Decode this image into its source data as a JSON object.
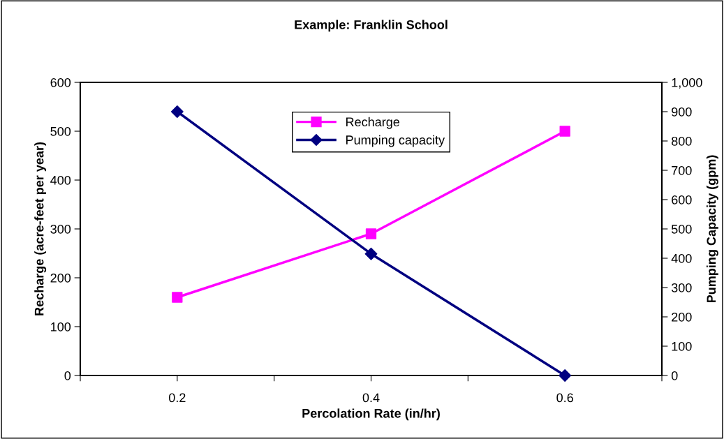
{
  "chart_data": {
    "type": "line",
    "title": "Example: Franklin School",
    "xlabel": "Percolation Rate (in/hr)",
    "ylabel": "Recharge (acre-feet per year)",
    "y2label": "Pumping Capacity (gpm)",
    "x": [
      0.2,
      0.4,
      0.6
    ],
    "series": [
      {
        "name": "Recharge",
        "color": "#ff00ff",
        "values": [
          160,
          290,
          500
        ],
        "marker": "square"
      },
      {
        "name": "Pumping capacity",
        "color": "#000080",
        "values": [
          900,
          415,
          0
        ],
        "axis": "y2",
        "marker": "diamond"
      }
    ],
    "xlim": [
      0.1,
      0.7
    ],
    "xticks": [
      {
        "value": 0.1,
        "label": null
      },
      0.2,
      {
        "value": 0.3,
        "label": null
      },
      0.4,
      {
        "value": 0.5,
        "label": null
      },
      0.6,
      {
        "value": 0.7,
        "label": null
      }
    ],
    "ylim": [
      0,
      600
    ],
    "yticks": [
      0,
      100,
      200,
      300,
      400,
      500,
      600
    ],
    "y2lim": [
      0,
      1000
    ],
    "y2ticks": [
      0,
      100,
      200,
      300,
      400,
      500,
      600,
      700,
      800,
      900,
      {
        "value": 1000,
        "label": "1,000"
      }
    ],
    "legend": "top center",
    "grid": false
  }
}
